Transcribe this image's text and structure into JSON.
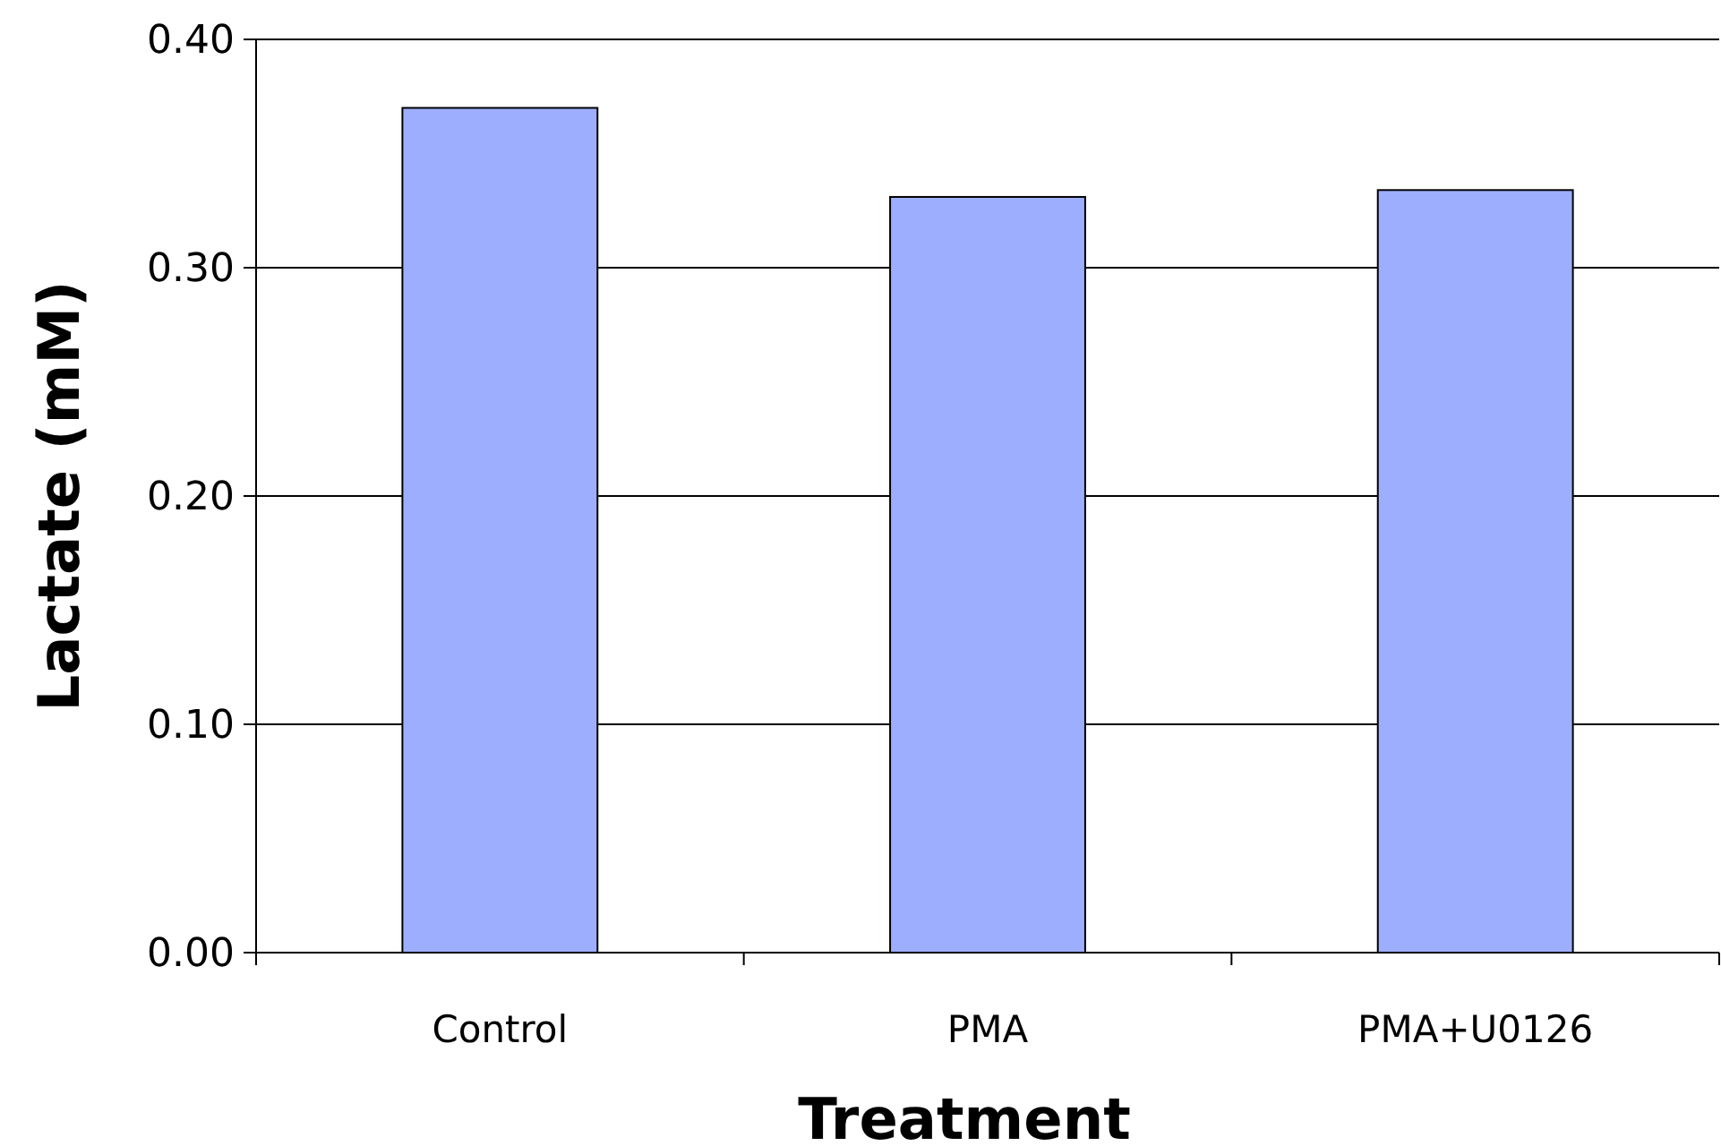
{
  "chart_data": {
    "type": "bar",
    "xlabel": "Treatment",
    "ylabel": "Lactate (mM)",
    "categories": [
      "Control",
      "PMA",
      "PMA+U0126"
    ],
    "values": [
      0.37,
      0.331,
      0.334
    ],
    "color": "#9eaeff",
    "ylim": [
      0,
      0.4
    ],
    "yticks": [
      {
        "value": 0,
        "label": "0.00"
      },
      {
        "value": 0.1,
        "label": "0.10"
      },
      {
        "value": 0.2,
        "label": "0.20"
      },
      {
        "value": 0.3,
        "label": "0.30"
      },
      {
        "value": 0.4,
        "label": "0.40"
      }
    ],
    "grid": "y"
  }
}
